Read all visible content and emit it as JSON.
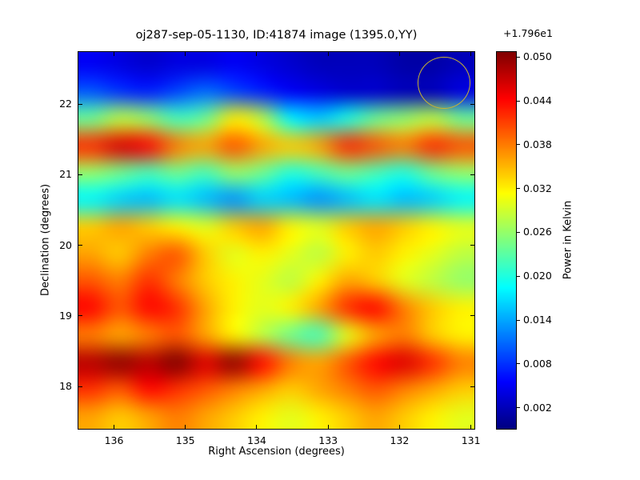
{
  "chart_data": {
    "type": "heatmap",
    "title": "oj287-sep-05-1130, ID:41874 image (1395.0,YY)",
    "xlabel": "Right Ascension (degrees)",
    "ylabel": "Declination (degrees)",
    "x_ticks": [
      136,
      135,
      134,
      133,
      132,
      131
    ],
    "y_ticks": [
      18,
      19,
      20,
      21,
      22
    ],
    "x_range": [
      136.51,
      130.94
    ],
    "y_range": [
      17.39,
      22.75
    ],
    "colormap": "jet",
    "grid_on": false,
    "colorbar": {
      "label": "Power in Kelvin",
      "offset_text": "+1.796e1",
      "tick_labels": [
        "0.002",
        "0.008",
        "0.014",
        "0.020",
        "0.026",
        "0.032",
        "0.038",
        "0.044",
        "0.050"
      ],
      "vmin": -0.001,
      "vmax": 0.0508
    },
    "annotation_circle": {
      "ra": 131.38,
      "dec": 22.3,
      "radius_deg": 0.37,
      "color": "#c8b432"
    },
    "grid_values": [
      [
        0.005,
        0.004,
        0.003,
        0.004,
        0.004,
        0.005,
        0.004,
        0.003,
        0.002,
        0.002,
        0.002,
        0.001,
        0.001,
        0.002
      ],
      [
        0.01,
        0.008,
        0.007,
        0.009,
        0.011,
        0.009,
        0.007,
        0.005,
        0.004,
        0.003,
        0.003,
        0.002,
        0.002,
        0.004
      ],
      [
        0.024,
        0.028,
        0.026,
        0.022,
        0.024,
        0.032,
        0.028,
        0.018,
        0.016,
        0.02,
        0.024,
        0.026,
        0.028,
        0.024
      ],
      [
        0.042,
        0.046,
        0.044,
        0.038,
        0.036,
        0.04,
        0.036,
        0.034,
        0.036,
        0.042,
        0.04,
        0.038,
        0.042,
        0.04
      ],
      [
        0.026,
        0.024,
        0.022,
        0.024,
        0.022,
        0.026,
        0.024,
        0.02,
        0.022,
        0.024,
        0.022,
        0.02,
        0.024,
        0.026
      ],
      [
        0.018,
        0.016,
        0.015,
        0.017,
        0.015,
        0.013,
        0.016,
        0.015,
        0.013,
        0.015,
        0.017,
        0.015,
        0.016,
        0.018
      ],
      [
        0.034,
        0.036,
        0.034,
        0.032,
        0.03,
        0.034,
        0.036,
        0.032,
        0.03,
        0.034,
        0.036,
        0.034,
        0.032,
        0.03
      ],
      [
        0.036,
        0.034,
        0.038,
        0.04,
        0.034,
        0.03,
        0.032,
        0.03,
        0.028,
        0.032,
        0.034,
        0.032,
        0.03,
        0.028
      ],
      [
        0.04,
        0.038,
        0.042,
        0.038,
        0.034,
        0.032,
        0.03,
        0.028,
        0.032,
        0.036,
        0.034,
        0.03,
        0.028,
        0.026
      ],
      [
        0.044,
        0.04,
        0.044,
        0.042,
        0.036,
        0.032,
        0.03,
        0.032,
        0.036,
        0.042,
        0.044,
        0.038,
        0.034,
        0.032
      ],
      [
        0.038,
        0.036,
        0.038,
        0.04,
        0.036,
        0.032,
        0.028,
        0.024,
        0.022,
        0.03,
        0.036,
        0.038,
        0.034,
        0.032
      ],
      [
        0.048,
        0.05,
        0.048,
        0.051,
        0.046,
        0.05,
        0.044,
        0.038,
        0.036,
        0.04,
        0.044,
        0.046,
        0.042,
        0.038
      ],
      [
        0.042,
        0.04,
        0.044,
        0.042,
        0.04,
        0.038,
        0.036,
        0.034,
        0.036,
        0.038,
        0.04,
        0.038,
        0.036,
        0.034
      ],
      [
        0.036,
        0.034,
        0.036,
        0.038,
        0.036,
        0.034,
        0.032,
        0.03,
        0.032,
        0.034,
        0.036,
        0.034,
        0.032,
        0.03
      ]
    ]
  }
}
